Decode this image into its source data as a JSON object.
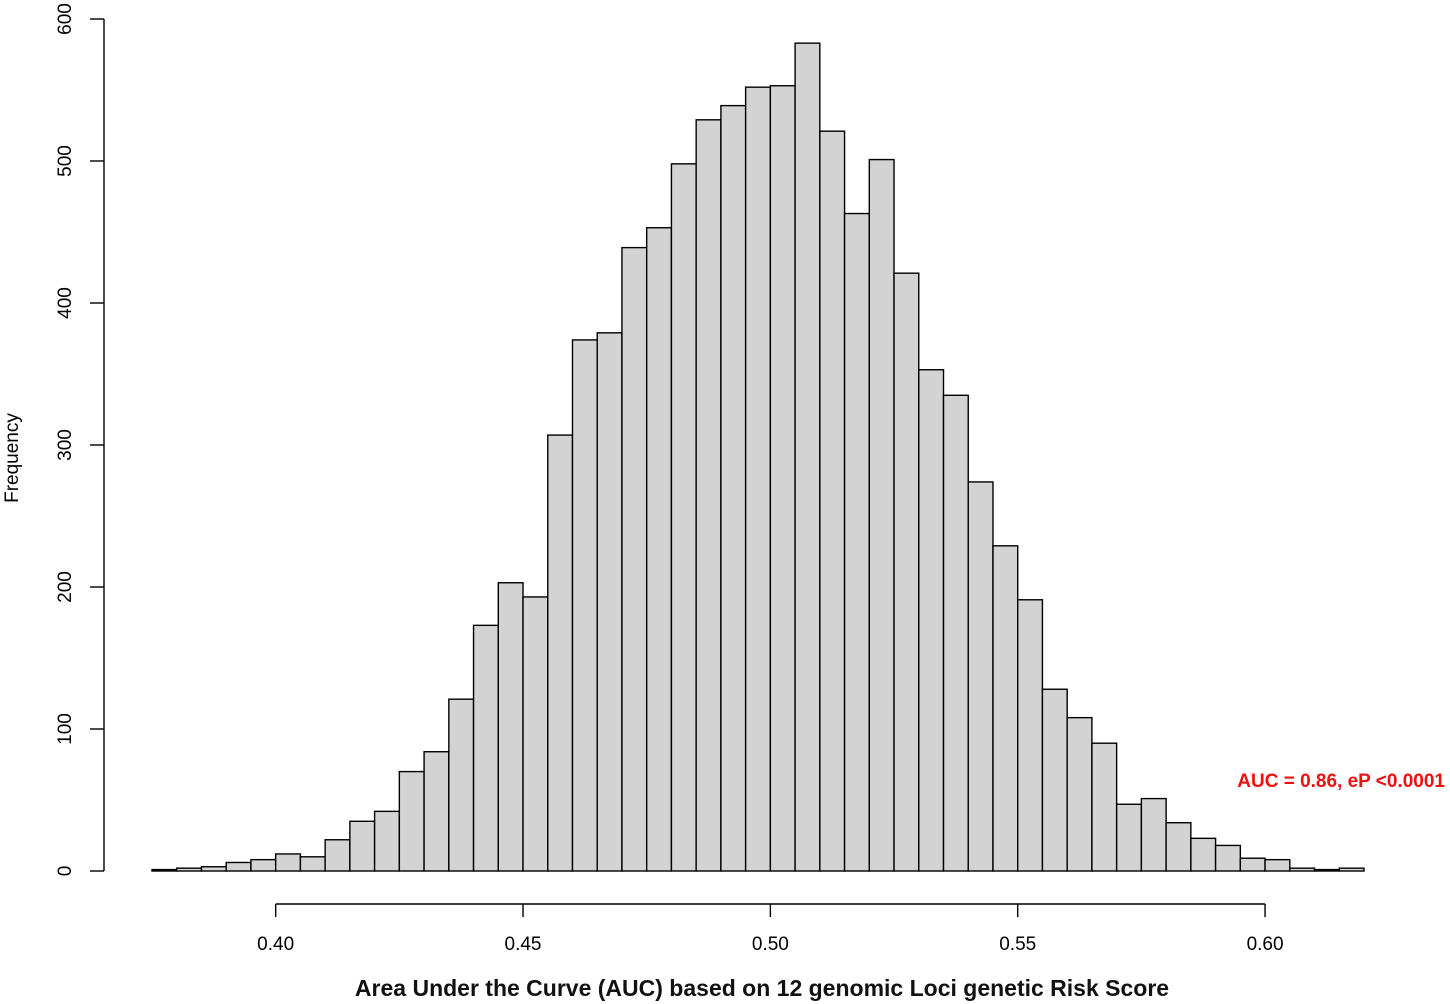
{
  "chart_data": {
    "type": "bar",
    "subtype": "histogram",
    "xlabel": "Area Under the Curve (AUC) based on 12 genomic Loci genetic Risk Score",
    "ylabel": "Frequency",
    "xlim": [
      0.375,
      0.62
    ],
    "ylim": [
      0,
      600
    ],
    "x_ticks": [
      "0.40",
      "0.45",
      "0.50",
      "0.55",
      "0.60"
    ],
    "y_ticks": [
      "0",
      "100",
      "200",
      "300",
      "400",
      "500",
      "600"
    ],
    "bin_width": 0.005,
    "bin_start": 0.375,
    "values": [
      1,
      2,
      3,
      6,
      8,
      12,
      10,
      22,
      35,
      42,
      70,
      84,
      121,
      173,
      203,
      193,
      307,
      374,
      379,
      439,
      453,
      498,
      529,
      539,
      552,
      553,
      583,
      521,
      463,
      501,
      421,
      353,
      335,
      274,
      229,
      191,
      128,
      108,
      90,
      47,
      51,
      34,
      23,
      18,
      9,
      8,
      2,
      1,
      2
    ],
    "annotation": "AUC = 0.86, eP <0.0001",
    "bar_color": "#d3d3d3",
    "edge_color": "#000000",
    "annotation_color": "#ee1111",
    "grid": false
  }
}
